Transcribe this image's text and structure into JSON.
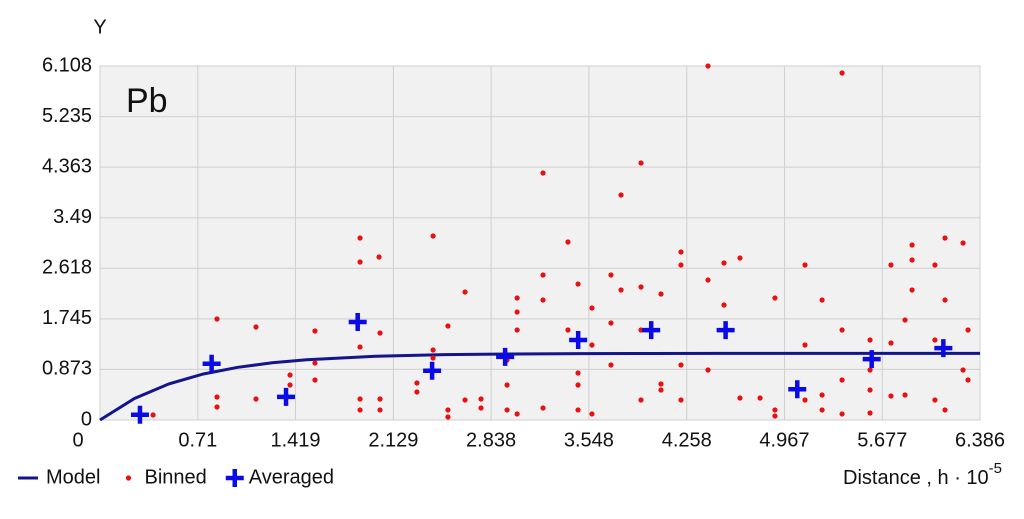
{
  "chart_data": {
    "type": "scatter",
    "title": "Pb",
    "y_label": "Y",
    "x_label": "Distance , h · 10",
    "x_label_exponent": "-5",
    "xlim": [
      0,
      6.386
    ],
    "ylim": [
      0,
      6.108
    ],
    "xticks": [
      0,
      0.71,
      1.419,
      2.129,
      2.838,
      3.548,
      4.258,
      4.967,
      5.677,
      6.386
    ],
    "yticks": [
      0,
      0.873,
      1.745,
      2.618,
      3.49,
      4.363,
      5.235,
      6.108
    ],
    "grid": true,
    "legend": "bottom-left",
    "series": [
      {
        "name": "Model",
        "mark": "line",
        "color": "#14148c",
        "x": [
          0,
          0.25,
          0.5,
          0.75,
          1,
          1.25,
          1.5,
          2,
          2.5,
          3,
          3.5,
          4,
          4.5,
          5,
          5.5,
          6,
          6.386
        ],
        "values": [
          0,
          0.371,
          0.623,
          0.794,
          0.909,
          0.987,
          1.04,
          1.099,
          1.127,
          1.139,
          1.145,
          1.148,
          1.149,
          1.15,
          1.15,
          1.15,
          1.15
        ]
      },
      {
        "name": "Binned",
        "mark": "dot",
        "color": "#e81010",
        "x": [
          0.385,
          0.849,
          0.849,
          0.849,
          1.132,
          1.132,
          1.379,
          1.379,
          1.56,
          1.56,
          1.56,
          1.887,
          1.887,
          1.887,
          1.887,
          1.887,
          2.025,
          2.032,
          2.032,
          2.032,
          2.3,
          2.3,
          2.417,
          2.417,
          2.417,
          2.525,
          2.525,
          2.525,
          2.649,
          2.649,
          2.765,
          2.765,
          2.954,
          2.954,
          2.954,
          3.027,
          3.027,
          3.027,
          3.027,
          3.215,
          3.215,
          3.215,
          3.215,
          3.396,
          3.396,
          3.469,
          3.469,
          3.469,
          3.469,
          3.57,
          3.57,
          3.57,
          3.708,
          3.708,
          3.708,
          3.781,
          3.781,
          3.926,
          3.926,
          3.926,
          3.926,
          4.071,
          4.071,
          4.071,
          4.216,
          4.216,
          4.216,
          4.216,
          4.412,
          4.412,
          4.412,
          4.528,
          4.528,
          4.644,
          4.644,
          4.79,
          4.898,
          4.898,
          4.898,
          5.116,
          5.116,
          5.116,
          5.24,
          5.24,
          5.24,
          5.385,
          5.385,
          5.385,
          5.385,
          5.588,
          5.588,
          5.588,
          5.588,
          5.74,
          5.74,
          5.74,
          5.842,
          5.842,
          5.893,
          5.893,
          5.893,
          6.059,
          6.059,
          6.059,
          6.132,
          6.132,
          6.132,
          6.263,
          6.263,
          6.299,
          6.299
        ],
        "values": [
          0.086,
          1.743,
          0.397,
          0.224,
          1.605,
          0.362,
          0.776,
          0.604,
          0.983,
          0.69,
          1.536,
          3.14,
          2.726,
          1.259,
          0.362,
          0.173,
          2.812,
          1.501,
          0.362,
          0.173,
          0.638,
          0.483,
          3.175,
          1.208,
          1.07,
          1.622,
          0.173,
          0.052,
          2.208,
          0.345,
          0.362,
          0.207,
          1.035,
          0.604,
          0.173,
          2.105,
          1.863,
          1.553,
          0.104,
          4.262,
          2.502,
          2.07,
          0.207,
          3.071,
          1.553,
          2.346,
          0.811,
          0.604,
          0.173,
          1.932,
          1.294,
          0.104,
          2.502,
          1.674,
          0.949,
          3.882,
          2.243,
          4.434,
          2.295,
          1.553,
          0.345,
          2.174,
          0.621,
          0.518,
          2.899,
          2.674,
          0.949,
          0.345,
          6.108,
          2.415,
          0.863,
          2.709,
          1.984,
          2.795,
          0.38,
          0.38,
          2.105,
          0.173,
          0.069,
          2.674,
          1.294,
          0.345,
          2.07,
          0.431,
          0.173,
          5.987,
          1.553,
          0.69,
          0.104,
          1.38,
          0.863,
          0.518,
          0.121,
          2.674,
          1.329,
          0.414,
          1.725,
          0.431,
          3.019,
          2.761,
          2.243,
          2.674,
          1.38,
          0.345,
          3.14,
          2.07,
          0.173,
          3.054,
          0.863,
          0.69,
          1.553
        ]
      },
      {
        "name": "Averaged",
        "mark": "plus",
        "color": "#0a0ae6",
        "x": [
          0.29,
          0.81,
          1.35,
          1.87,
          2.41,
          2.94,
          3.47,
          4.0,
          4.54,
          5.06,
          5.6,
          6.12
        ],
        "values": [
          0.09,
          0.97,
          0.4,
          1.69,
          0.85,
          1.09,
          1.38,
          1.55,
          1.55,
          0.53,
          1.05,
          1.24
        ]
      }
    ]
  }
}
